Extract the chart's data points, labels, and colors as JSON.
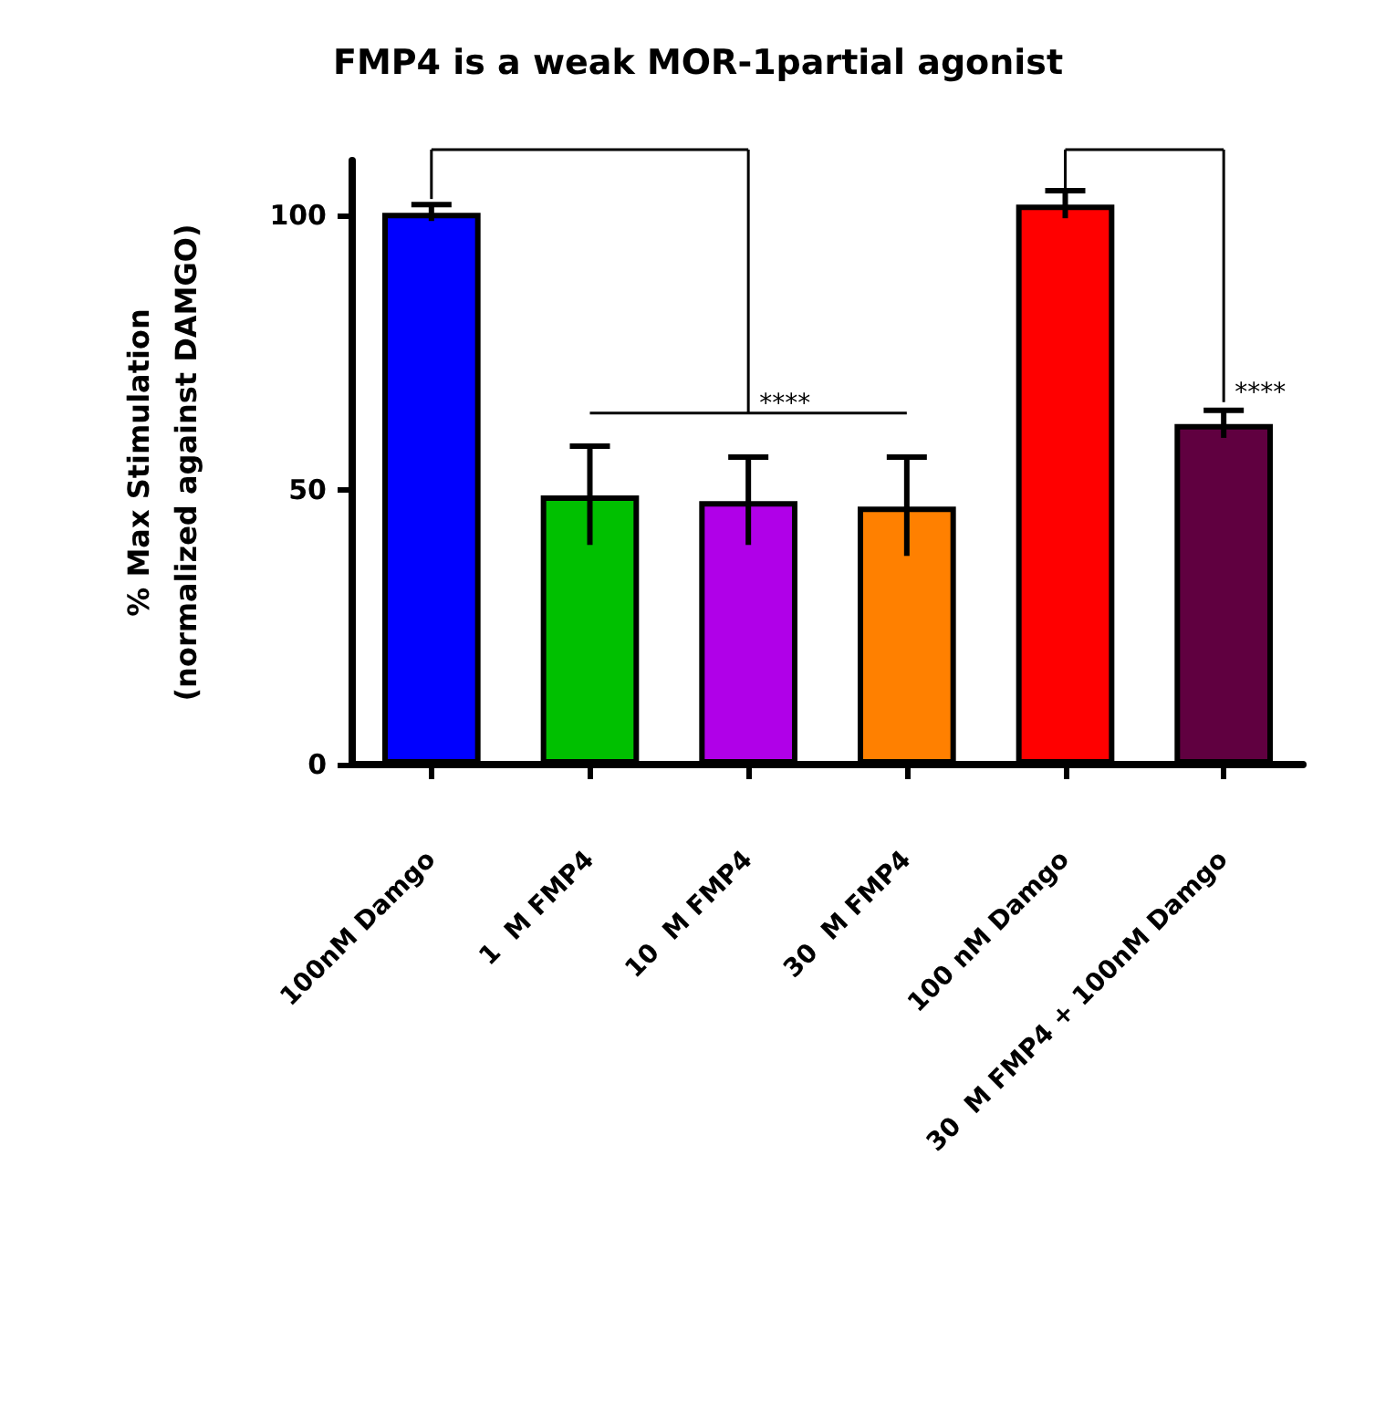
{
  "chart_data": {
    "type": "bar",
    "title": "FMP4 is a weak MOR-1partial agonist",
    "ylabel": "% Max Stimulation\n(normalized against DAMGO)",
    "categories": [
      "100nM Damgo",
      "1  M FMP4",
      "10  M FMP4",
      "30  M FMP4",
      "100 nM Damgo",
      "30  M FMP4 + 100nM Damgo"
    ],
    "values": [
      100.5,
      49,
      48,
      47,
      102,
      62
    ],
    "errors": [
      1.5,
      9,
      8,
      9,
      2.5,
      2.5
    ],
    "colors": [
      "#0000ff",
      "#00c000",
      "#b000e8",
      "#ff8000",
      "#ff0000",
      "#600040"
    ],
    "ylim": [
      0,
      110
    ],
    "yticks": [
      0,
      50,
      100
    ],
    "grid": false,
    "annotations": [
      "****",
      "****"
    ]
  }
}
